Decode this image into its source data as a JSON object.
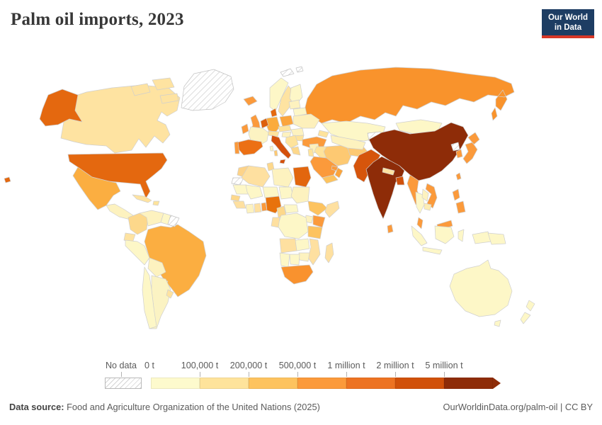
{
  "header": {
    "title": "Palm oil imports, 2023"
  },
  "logo": {
    "line1": "Our World",
    "line2": "in Data",
    "bg_color": "#1d3d63",
    "accent_color": "#d73727"
  },
  "footer": {
    "datasource_label": "Data source:",
    "datasource_text": " Food and Agriculture Organization of the United Nations (2025)",
    "credit": "OurWorldinData.org/palm-oil | CC BY"
  },
  "chart_data": {
    "type": "heatmap",
    "subtype": "world-choropleth-map",
    "title": "Palm oil imports, 2023",
    "unit": "tonnes",
    "legend": {
      "no_data_label": "No data",
      "open_ended_arrow": true,
      "bins": [
        {
          "label": "0 t",
          "color": "#fdfacd"
        },
        {
          "label": "100,000 t",
          "color": "#fee39b"
        },
        {
          "label": "200,000 t",
          "color": "#fdc35f"
        },
        {
          "label": "500,000 t",
          "color": "#fb9a3b"
        },
        {
          "label": "1 million t",
          "color": "#ed7322"
        },
        {
          "label": "2 million t",
          "color": "#d1510a"
        },
        {
          "label": "5 million t",
          "color": "#8e2c08"
        }
      ]
    },
    "no_data_regions": [
      "Greenland",
      "Svalbard",
      "Western Sahara",
      "French Guiana / Suriname",
      "Kyrgyzstan / Tajikistan",
      "North Korea"
    ],
    "regions": {
      "russia": {
        "label": "Russia",
        "color": "#f9932c"
      },
      "canada": {
        "label": "Canada",
        "color": "#fee3a1"
      },
      "arctic_islands": {
        "label": "Canadian Arctic",
        "color": "#fee3a1"
      },
      "usa": {
        "label": "United States",
        "color": "#e4680f"
      },
      "mexico": {
        "label": "Mexico",
        "color": "#fbae41"
      },
      "central_america": {
        "label": "Central America",
        "color": "#fdf2bf"
      },
      "cuba": {
        "label": "Cuba",
        "color": "#fee3a1"
      },
      "hispaniola": {
        "label": "Hispaniola",
        "color": "#fee39b"
      },
      "colombia": {
        "label": "Colombia",
        "color": "#fdd88b"
      },
      "venezuela": {
        "label": "Venezuela",
        "color": "#fdf2bf"
      },
      "guyana": {
        "label": "Guyana",
        "color": "#fdf7c7"
      },
      "ecuador": {
        "label": "Ecuador",
        "color": "#fee3a1"
      },
      "peru": {
        "label": "Peru",
        "color": "#fdf7c7"
      },
      "brazil": {
        "label": "Brazil",
        "color": "#fbae41"
      },
      "bolivia": {
        "label": "Bolivia",
        "color": "#fdf2bf"
      },
      "paraguay": {
        "label": "Paraguay",
        "color": "#fdf7c7"
      },
      "chile": {
        "label": "Chile",
        "color": "#fdf7c7"
      },
      "argentina": {
        "label": "Argentina",
        "color": "#fbf3c3"
      },
      "uruguay": {
        "label": "Uruguay",
        "color": "#fee3a1"
      },
      "iceland": {
        "label": "Iceland",
        "color": "#fb9a3b"
      },
      "ireland": {
        "label": "Ireland",
        "color": "#fb9a3b"
      },
      "uk": {
        "label": "United Kingdom",
        "color": "#fb9a3b"
      },
      "norway": {
        "label": "Norway",
        "color": "#fdf7c7"
      },
      "sweden": {
        "label": "Sweden",
        "color": "#fee3a1"
      },
      "finland": {
        "label": "Finland",
        "color": "#fdf7c7"
      },
      "baltics": {
        "label": "Baltic states",
        "color": "#fdf2bf"
      },
      "denmark": {
        "label": "Denmark",
        "color": "#e4680f"
      },
      "netherlands": {
        "label": "Netherlands / Belgium",
        "color": "#dd5f0c"
      },
      "germany": {
        "label": "Germany",
        "color": "#fbab3c"
      },
      "poland": {
        "label": "Poland",
        "color": "#fba43c"
      },
      "czechia": {
        "label": "Czechia / Slovakia",
        "color": "#fee39b"
      },
      "austria": {
        "label": "Austria / Switzerland",
        "color": "#fee39b"
      },
      "hungary": {
        "label": "Hungary",
        "color": "#fdf2bf"
      },
      "france": {
        "label": "France",
        "color": "#fcf3c2"
      },
      "spain": {
        "label": "Spain",
        "color": "#ec7014"
      },
      "portugal": {
        "label": "Portugal",
        "color": "#fb9a3b"
      },
      "italy": {
        "label": "Italy",
        "color": "#d4500b"
      },
      "sardinia": {
        "label": "Sardinia",
        "color": "#fdc972"
      },
      "balkans": {
        "label": "Balkans",
        "color": "#fee39b"
      },
      "greece": {
        "label": "Greece",
        "color": "#fdd88b"
      },
      "romania": {
        "label": "Romania",
        "color": "#fdf2bf"
      },
      "bulgaria": {
        "label": "Bulgaria",
        "color": "#fee39b"
      },
      "ukraine": {
        "label": "Ukraine",
        "color": "#fdf0bb"
      },
      "belarus": {
        "label": "Belarus",
        "color": "#fdf7c7"
      },
      "turkey": {
        "label": "Turkey",
        "color": "#fb9a3b"
      },
      "caucasus": {
        "label": "Caucasus",
        "color": "#fee39b"
      },
      "syria": {
        "label": "Syria",
        "color": "#fdf0bb"
      },
      "iraq": {
        "label": "Iraq",
        "color": "#fee39b"
      },
      "iran": {
        "label": "Iran",
        "color": "#fdc972"
      },
      "afghanistan": {
        "label": "Afghanistan",
        "color": "#fdc972"
      },
      "pakistan": {
        "label": "Pakistan",
        "color": "#d6550c"
      },
      "saudi_arabia": {
        "label": "Saudi Arabia",
        "color": "#fb9a3b"
      },
      "yemen": {
        "label": "Yemen",
        "color": "#fdc35f"
      },
      "oman": {
        "label": "Oman",
        "color": "#fba43c"
      },
      "uae": {
        "label": "United Arab Emirates",
        "color": "#fb9a3b"
      },
      "jordan_israel": {
        "label": "Jordan / Israel",
        "color": "#fee39b"
      },
      "morocco": {
        "label": "Morocco",
        "color": "#fdd389"
      },
      "algeria": {
        "label": "Algeria",
        "color": "#fee0a0"
      },
      "tunisia": {
        "label": "Tunisia",
        "color": "#fdd88b"
      },
      "libya": {
        "label": "Libya",
        "color": "#fdf2bf"
      },
      "egypt": {
        "label": "Egypt",
        "color": "#e2660e"
      },
      "mauritania": {
        "label": "Mauritania",
        "color": "#fdf7c7"
      },
      "mali": {
        "label": "Mali",
        "color": "#fdf7c7"
      },
      "niger": {
        "label": "Niger",
        "color": "#fdf7c7"
      },
      "chad": {
        "label": "Chad",
        "color": "#fdf7c7"
      },
      "sudan": {
        "label": "Sudan",
        "color": "#fdf2bf"
      },
      "senegal": {
        "label": "Senegal",
        "color": "#fdd88b"
      },
      "guinea": {
        "label": "Guinea",
        "color": "#fee0a0"
      },
      "ivory_coast": {
        "label": "Côte d'Ivoire",
        "color": "#fdf2bf"
      },
      "ghana": {
        "label": "Ghana",
        "color": "#fee0a0"
      },
      "benin_togo": {
        "label": "Benin / Togo",
        "color": "#fb9a3b"
      },
      "nigeria": {
        "label": "Nigeria",
        "color": "#e8720c"
      },
      "cameroon": {
        "label": "Cameroon",
        "color": "#fdd88b"
      },
      "central_african_republic": {
        "label": "Central African Republic",
        "color": "#fdf7c7"
      },
      "ethiopia": {
        "label": "Ethiopia",
        "color": "#fdc35f"
      },
      "somalia": {
        "label": "Somalia",
        "color": "#fee0a0"
      },
      "kenya": {
        "label": "Kenya",
        "color": "#fb9a3b"
      },
      "uganda": {
        "label": "Uganda",
        "color": "#fdf2bf"
      },
      "drc": {
        "label": "Democratic Republic of Congo",
        "color": "#fdf7c7"
      },
      "congo_gabon": {
        "label": "Congo / Gabon",
        "color": "#fee0a0"
      },
      "tanzania": {
        "label": "Tanzania",
        "color": "#fdc35f"
      },
      "angola": {
        "label": "Angola",
        "color": "#fee0a0"
      },
      "zambia": {
        "label": "Zambia",
        "color": "#fdf7c7"
      },
      "mozambique": {
        "label": "Mozambique",
        "color": "#fee0a0"
      },
      "zimbabwe": {
        "label": "Zimbabwe",
        "color": "#fdf2bf"
      },
      "botswana": {
        "label": "Botswana",
        "color": "#fdf7c7"
      },
      "namibia": {
        "label": "Namibia",
        "color": "#fdf7c7"
      },
      "south_africa": {
        "label": "South Africa",
        "color": "#f9922e"
      },
      "madagascar": {
        "label": "Madagascar",
        "color": "#fee0a0"
      },
      "kazakhstan": {
        "label": "Kazakhstan",
        "color": "#fdf7c7"
      },
      "uzbekistan_turkmenistan": {
        "label": "Uzbekistan / Turkmenistan",
        "color": "#fdf2bf"
      },
      "mongolia": {
        "label": "Mongolia",
        "color": "#fdf7c7"
      },
      "china": {
        "label": "China",
        "color": "#8e2c08"
      },
      "south_korea": {
        "label": "South Korea",
        "color": "#fb9a3b"
      },
      "japan": {
        "label": "Japan",
        "color": "#fb9a3b"
      },
      "taiwan": {
        "label": "Taiwan",
        "color": "#fb9a3b"
      },
      "india": {
        "label": "India",
        "color": "#8e2c08"
      },
      "nepal": {
        "label": "Nepal",
        "color": "#fee3a1"
      },
      "bangladesh": {
        "label": "Bangladesh",
        "color": "#d0500a"
      },
      "sri_lanka": {
        "label": "Sri Lanka",
        "color": "#fb9a3b"
      },
      "myanmar": {
        "label": "Myanmar",
        "color": "#fb9a3b"
      },
      "thailand": {
        "label": "Thailand",
        "color": "#fdf7c7"
      },
      "laos": {
        "label": "Laos",
        "color": "#fdf2bf"
      },
      "vietnam": {
        "label": "Vietnam",
        "color": "#fb9a3b"
      },
      "cambodia": {
        "label": "Cambodia",
        "color": "#fdedb3"
      },
      "malaysia": {
        "label": "Malaysia",
        "color": "#fb9a3b"
      },
      "indonesia": {
        "label": "Indonesia",
        "color": "#fdf7c7"
      },
      "papua_new_guinea": {
        "label": "Papua New Guinea",
        "color": "#fdf7c7"
      },
      "philippines": {
        "label": "Philippines",
        "color": "#fb9a3b"
      },
      "australia": {
        "label": "Australia",
        "color": "#fdf7c7"
      },
      "new_zealand": {
        "label": "New Zealand",
        "color": "#fdf7c7"
      }
    }
  }
}
